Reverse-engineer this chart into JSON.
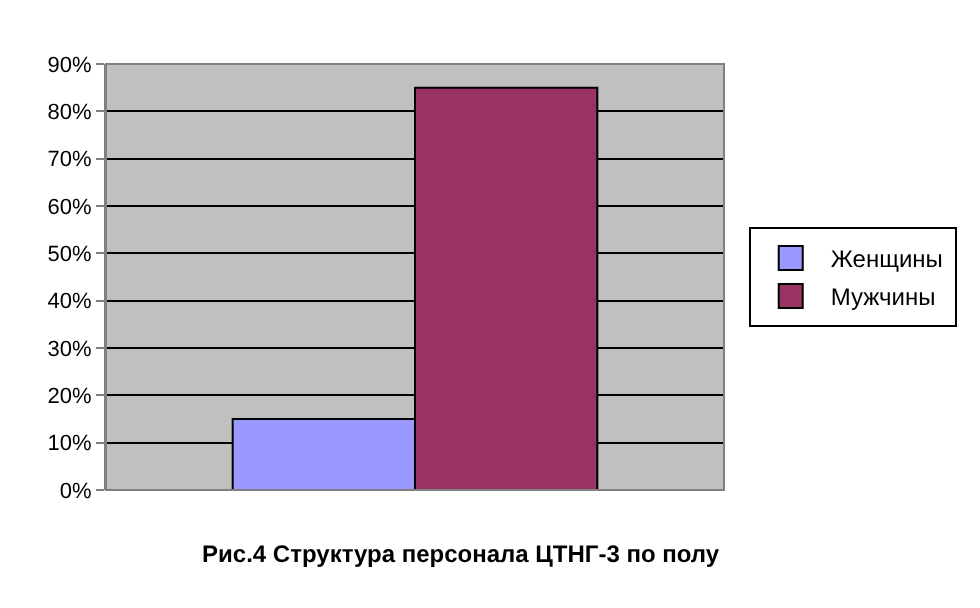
{
  "chart_data": {
    "type": "bar",
    "title": "Рис.4 Структура персонала ЦТНГ-3 по полу",
    "categories": [
      null
    ],
    "series": [
      {
        "name": "Женщины",
        "color": "#9999ff",
        "values": [
          15
        ]
      },
      {
        "name": "Мужчины",
        "color": "#993366",
        "values": [
          85
        ]
      }
    ],
    "ylim": [
      0,
      90
    ],
    "yticks": [
      {
        "value": 0,
        "label": "0%"
      },
      {
        "value": 10,
        "label": "10%"
      },
      {
        "value": 20,
        "label": "20%"
      },
      {
        "value": 30,
        "label": "30%"
      },
      {
        "value": 40,
        "label": "40%"
      },
      {
        "value": 50,
        "label": "50%"
      },
      {
        "value": 60,
        "label": "60%"
      },
      {
        "value": 70,
        "label": "70%"
      },
      {
        "value": 80,
        "label": "80%"
      },
      {
        "value": 90,
        "label": "90%"
      }
    ],
    "grid": "y",
    "legend": "right"
  }
}
